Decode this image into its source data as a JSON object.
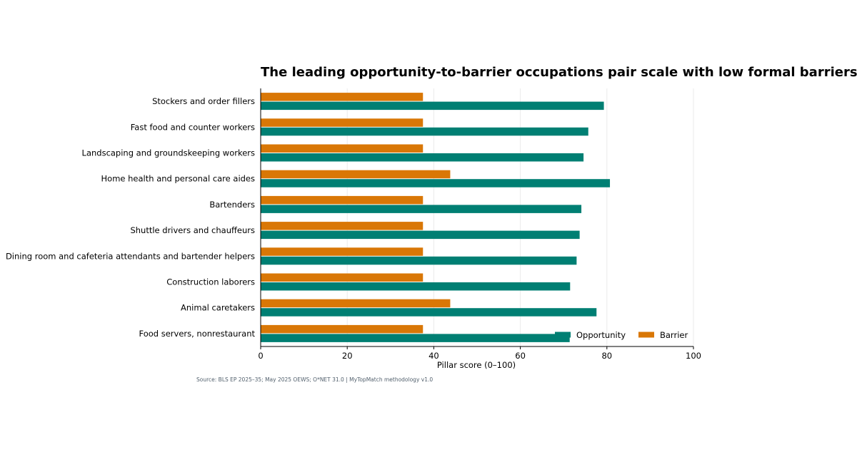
{
  "chart_data": {
    "type": "bar",
    "orientation": "horizontal",
    "title": "The leading opportunity-to-barrier occupations pair scale with low formal barriers",
    "xlabel": "Pillar score (0–100)",
    "ylabel": "",
    "xlim": [
      0,
      100
    ],
    "xticks": [
      0,
      20,
      40,
      60,
      80,
      100
    ],
    "grid": "vertical",
    "legend_position": "bottom-right",
    "categories": [
      "Stockers and order fillers",
      "Fast food and counter workers",
      "Landscaping and groundskeeping workers",
      "Home health and personal care aides",
      "Bartenders",
      "Shuttle drivers and chauffeurs",
      "Dining room and cafeteria attendants and bartender helpers",
      "Construction laborers",
      "Animal caretakers",
      "Food servers, nonrestaurant"
    ],
    "series": [
      {
        "name": "Opportunity",
        "color": "#007f73",
        "values": [
          79.3,
          75.7,
          74.6,
          80.7,
          74.1,
          73.7,
          73.0,
          71.5,
          77.6,
          71.4
        ]
      },
      {
        "name": "Barrier",
        "color": "#d97706",
        "values": [
          37.5,
          37.5,
          37.5,
          43.8,
          37.5,
          37.5,
          37.5,
          37.5,
          43.8,
          37.5
        ]
      }
    ]
  },
  "source": "Source: BLS EP 2025–35; May 2025 OEWS; O*NET 31.0 | MyTopMatch methodology v1.0"
}
